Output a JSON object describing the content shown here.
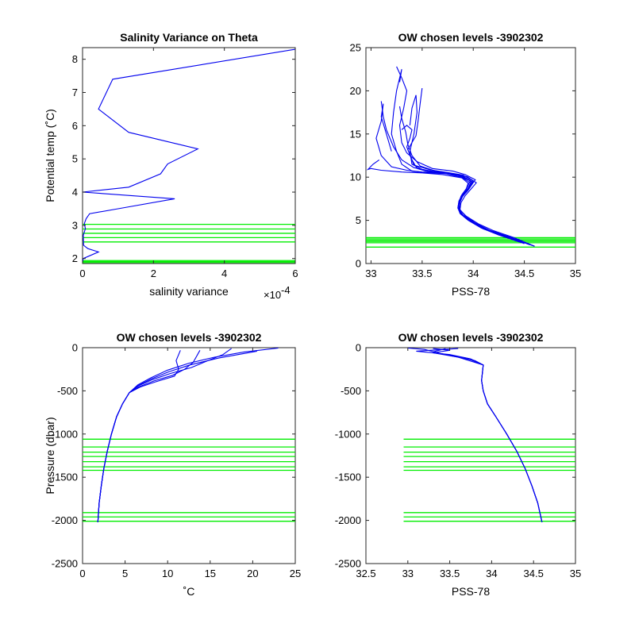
{
  "colors": {
    "profile": "#0000ee",
    "levels": "#00ee00",
    "axis": "#262626"
  },
  "chart_data": [
    {
      "type": "line",
      "title": "Salinity Variance on Theta",
      "xlabel": "salinity variance",
      "ylabel": "Potential temp (˚C)",
      "x_multiplier": "×10",
      "x_exponent": "-4",
      "xlim": [
        0,
        6
      ],
      "ylim": [
        1.85,
        8.35
      ],
      "xticks": [
        0,
        2,
        4,
        6
      ],
      "yticks": [
        2,
        3,
        4,
        5,
        6,
        7,
        8
      ],
      "series": [
        {
          "x": [
            6.0,
            0.85,
            0.45,
            1.3,
            3.25,
            2.4,
            2.2,
            1.3,
            0.0,
            2.6,
            1.0,
            0.2,
            0.1,
            0.05,
            0.08,
            0.02,
            0.03,
            0.15,
            0.45,
            0.02,
            0.0
          ],
          "y": [
            8.3,
            7.4,
            6.5,
            5.8,
            5.3,
            4.85,
            4.55,
            4.15,
            4.0,
            3.8,
            3.5,
            3.35,
            3.2,
            3.05,
            2.9,
            2.7,
            2.4,
            2.3,
            2.2,
            2.0,
            1.9
          ]
        }
      ],
      "hlines": {
        "y": [
          1.88,
          1.91,
          1.94,
          2.5,
          2.63,
          2.76,
          2.89,
          3.03
        ],
        "x_from": 0,
        "x_to": 6
      }
    },
    {
      "type": "line",
      "title": "OW chosen levels -3902302",
      "xlabel": "PSS-78",
      "ylabel": "",
      "xlim": [
        32.95,
        35
      ],
      "ylim": [
        0,
        25
      ],
      "xticks": [
        33,
        33.5,
        34,
        34.5,
        35
      ],
      "yticks": [
        0,
        5,
        10,
        15,
        20,
        25
      ],
      "series": [
        {
          "x": [
            34.6,
            34.4,
            34.2,
            34.05,
            33.93,
            33.87,
            33.86,
            33.88,
            33.93,
            33.95,
            33.88,
            33.7,
            33.5,
            33.35,
            33.2,
            33.1,
            33.05,
            33.1,
            33.12,
            33.1,
            33.15,
            33.2
          ],
          "y": [
            2.0,
            3.0,
            3.8,
            4.6,
            5.5,
            6.2,
            7.0,
            7.8,
            8.6,
            9.3,
            10.0,
            10.5,
            10.6,
            10.8,
            11.2,
            12.5,
            14.5,
            16.5,
            18.5,
            17.0,
            15.0,
            13.0
          ]
        },
        {
          "x": [
            34.55,
            34.35,
            34.15,
            34.0,
            33.9,
            33.86,
            33.87,
            33.9,
            33.96,
            34.0,
            33.9,
            33.75,
            33.55,
            33.4,
            33.3,
            33.25,
            33.2,
            33.22,
            33.25,
            33.3,
            33.28
          ],
          "y": [
            2.2,
            3.1,
            3.9,
            4.8,
            5.6,
            6.3,
            7.1,
            7.9,
            8.7,
            9.4,
            10.1,
            10.4,
            10.5,
            10.7,
            11.5,
            13.0,
            15.0,
            17.5,
            20.0,
            22.5,
            21.0
          ]
        },
        {
          "x": [
            34.5,
            34.3,
            34.1,
            33.97,
            33.88,
            33.85,
            33.86,
            33.89,
            33.94,
            33.97,
            33.85,
            33.65,
            33.5,
            33.4,
            33.38,
            33.42,
            33.45,
            33.44,
            33.4,
            33.38
          ],
          "y": [
            2.4,
            3.2,
            4.0,
            4.9,
            5.7,
            6.4,
            7.2,
            8.0,
            8.8,
            9.6,
            10.2,
            10.6,
            10.9,
            11.5,
            13.0,
            15.0,
            17.5,
            19.5,
            18.0,
            16.0
          ]
        },
        {
          "x": [
            34.45,
            34.25,
            34.08,
            33.95,
            33.87,
            33.85,
            33.87,
            33.91,
            33.97,
            34.02,
            33.92,
            33.8,
            33.6,
            33.45,
            33.35,
            33.3,
            33.28,
            33.32,
            33.35,
            33.3,
            33.25
          ],
          "y": [
            2.5,
            3.3,
            4.1,
            5.0,
            5.8,
            6.5,
            7.3,
            8.1,
            8.9,
            9.7,
            10.3,
            10.7,
            11.0,
            11.8,
            12.8,
            14.0,
            16.0,
            18.0,
            20.0,
            21.5,
            22.8
          ]
        },
        {
          "x": [
            34.6,
            34.38,
            34.18,
            34.03,
            33.91,
            33.86,
            33.86,
            33.89,
            33.95,
            33.99,
            33.9,
            33.7,
            33.5,
            33.3,
            33.1,
            33.0,
            32.97,
            33.02,
            33.08
          ],
          "y": [
            2.0,
            2.9,
            3.7,
            4.5,
            5.4,
            6.1,
            6.9,
            7.7,
            8.5,
            9.2,
            9.9,
            10.3,
            10.5,
            10.6,
            10.8,
            11.0,
            10.9,
            11.5,
            12.0
          ]
        },
        {
          "x": [
            34.5,
            34.3,
            34.12,
            33.98,
            33.89,
            33.86,
            33.87,
            33.9,
            33.95,
            33.98,
            33.88,
            33.72,
            33.55,
            33.45,
            33.4,
            33.35,
            33.38,
            33.4,
            33.35,
            33.3
          ],
          "y": [
            2.3,
            3.15,
            3.95,
            4.85,
            5.65,
            6.35,
            7.15,
            7.95,
            8.75,
            9.5,
            10.15,
            10.45,
            10.65,
            11.0,
            12.0,
            13.5,
            14.5,
            15.5,
            16.0,
            15.5
          ]
        },
        {
          "x": [
            34.58,
            34.36,
            34.16,
            34.02,
            33.92,
            33.87,
            33.88,
            33.92,
            33.98,
            34.03,
            33.94,
            33.78,
            33.62,
            33.48,
            33.4,
            33.36,
            33.34,
            33.3,
            33.28
          ],
          "y": [
            2.1,
            3.05,
            3.85,
            4.7,
            5.55,
            6.25,
            7.05,
            7.85,
            8.65,
            9.35,
            10.05,
            10.45,
            10.75,
            11.3,
            12.5,
            13.8,
            15.2,
            16.8,
            18.2
          ]
        },
        {
          "x": [
            34.48,
            34.28,
            34.1,
            33.96,
            33.88,
            33.85,
            33.86,
            33.9,
            33.96,
            34.0,
            33.9,
            33.74,
            33.58,
            33.42,
            33.36,
            33.44,
            33.46,
            33.48,
            33.5
          ],
          "y": [
            2.45,
            3.25,
            4.05,
            4.95,
            5.75,
            6.45,
            7.25,
            8.05,
            8.85,
            9.55,
            10.25,
            10.55,
            10.85,
            11.4,
            13.2,
            14.8,
            16.5,
            18.5,
            20.3
          ]
        },
        {
          "x": [
            34.56,
            34.34,
            34.14,
            33.99,
            33.9,
            33.86,
            33.87,
            33.9,
            33.95,
            33.99,
            33.9,
            33.75,
            33.58,
            33.42,
            33.3,
            33.22,
            33.15,
            33.12,
            33.1
          ],
          "y": [
            2.15,
            3.1,
            3.9,
            4.75,
            5.6,
            6.3,
            7.1,
            7.9,
            8.7,
            9.4,
            10.1,
            10.5,
            10.7,
            11.1,
            12.0,
            13.5,
            15.5,
            17.0,
            18.8
          ]
        }
      ],
      "hlines": {
        "y": [
          1.9,
          2.4,
          2.55,
          2.7,
          2.85,
          3.0
        ],
        "x_from": 32.95,
        "x_to": 35
      }
    },
    {
      "type": "line",
      "title": "OW chosen levels -3902302",
      "xlabel": "˚C",
      "ylabel": "Pressure (dbar)",
      "xlim": [
        0,
        25
      ],
      "ylim": [
        -2500,
        0
      ],
      "xticks": [
        0,
        5,
        10,
        15,
        20,
        25
      ],
      "yticks": [
        0,
        -500,
        -1000,
        -1500,
        -2000,
        -2500
      ],
      "series": [
        {
          "x": [
            1.8,
            1.95,
            2.2,
            2.5,
            2.9,
            3.4,
            4.0,
            4.7,
            5.5,
            6.5,
            8.0,
            10.0,
            12.5,
            15.5,
            19.0,
            23.0
          ],
          "y": [
            -2020,
            -1800,
            -1600,
            -1400,
            -1200,
            -1000,
            -800,
            -650,
            -520,
            -430,
            -350,
            -260,
            -180,
            -110,
            -50,
            -5
          ]
        },
        {
          "x": [
            1.8,
            1.95,
            2.2,
            2.5,
            2.9,
            3.4,
            4.0,
            4.7,
            5.5,
            6.6,
            8.2,
            10.3,
            12.8,
            14.5,
            16.5,
            17.5
          ],
          "y": [
            -2020,
            -1800,
            -1600,
            -1400,
            -1200,
            -1000,
            -800,
            -650,
            -520,
            -440,
            -370,
            -300,
            -230,
            -160,
            -80,
            -10
          ]
        },
        {
          "x": [
            1.8,
            1.95,
            2.2,
            2.5,
            2.9,
            3.4,
            4.0,
            4.7,
            5.5,
            6.7,
            8.4,
            10.6,
            12.0,
            13.0,
            13.8
          ],
          "y": [
            -2020,
            -1800,
            -1600,
            -1400,
            -1200,
            -1000,
            -800,
            -650,
            -520,
            -450,
            -385,
            -320,
            -250,
            -170,
            -30
          ]
        },
        {
          "x": [
            1.8,
            1.95,
            2.2,
            2.5,
            2.9,
            3.4,
            4.0,
            4.7,
            5.5,
            6.8,
            8.6,
            10.8,
            11.3,
            11.0,
            11.5
          ],
          "y": [
            -2020,
            -1800,
            -1600,
            -1400,
            -1200,
            -1000,
            -800,
            -650,
            -520,
            -455,
            -395,
            -330,
            -250,
            -150,
            -30
          ]
        },
        {
          "x": [
            1.8,
            1.95,
            2.2,
            2.5,
            2.9,
            3.4,
            4.0,
            4.7,
            5.5,
            6.6,
            8.1,
            10.1,
            12.6,
            16.0,
            20.5
          ],
          "y": [
            -2020,
            -1800,
            -1600,
            -1400,
            -1200,
            -1000,
            -800,
            -650,
            -520,
            -435,
            -360,
            -280,
            -200,
            -120,
            -40
          ]
        }
      ],
      "hlines": {
        "y": [
          -1060,
          -1150,
          -1210,
          -1260,
          -1320,
          -1380,
          -1420,
          -1910,
          -1960,
          -2010
        ],
        "x_from": 0,
        "x_to": 25
      }
    },
    {
      "type": "line",
      "title": "OW chosen levels -3902302",
      "xlabel": "PSS-78",
      "ylabel": "",
      "xlim": [
        32.5,
        35
      ],
      "ylim": [
        -2500,
        0
      ],
      "xticks": [
        32.5,
        33,
        33.5,
        34,
        34.5,
        35
      ],
      "yticks": [
        0,
        -500,
        -1000,
        -1500,
        -2000,
        -2500
      ],
      "series": [
        {
          "x": [
            34.6,
            34.55,
            34.48,
            34.4,
            34.3,
            34.18,
            34.05,
            33.95,
            33.9,
            33.88,
            33.9,
            33.7,
            33.4,
            33.2,
            33.0
          ],
          "y": [
            -2020,
            -1800,
            -1600,
            -1400,
            -1200,
            -1000,
            -800,
            -650,
            -500,
            -380,
            -200,
            -120,
            -70,
            -20,
            -5
          ]
        },
        {
          "x": [
            34.6,
            34.55,
            34.48,
            34.4,
            34.3,
            34.18,
            34.05,
            33.95,
            33.9,
            33.88,
            33.9,
            33.6,
            33.3,
            33.5,
            33.3
          ],
          "y": [
            -2020,
            -1800,
            -1600,
            -1400,
            -1200,
            -1000,
            -800,
            -650,
            -500,
            -380,
            -200,
            -110,
            -60,
            -30,
            -10
          ]
        },
        {
          "x": [
            34.6,
            34.55,
            34.48,
            34.4,
            34.3,
            34.18,
            34.05,
            33.95,
            33.9,
            33.88,
            33.9,
            33.75,
            33.5,
            33.1,
            33.6
          ],
          "y": [
            -2020,
            -1800,
            -1600,
            -1400,
            -1200,
            -1000,
            -800,
            -650,
            -500,
            -380,
            -200,
            -130,
            -80,
            -40,
            -10
          ]
        },
        {
          "x": [
            34.6,
            34.55,
            34.48,
            34.4,
            34.3,
            34.18,
            34.05,
            33.95,
            33.9,
            33.88,
            33.9,
            33.8,
            33.55,
            33.3,
            33.45
          ],
          "y": [
            -2020,
            -1800,
            -1600,
            -1400,
            -1200,
            -1000,
            -800,
            -650,
            -500,
            -380,
            -200,
            -150,
            -100,
            -50,
            -10
          ]
        }
      ],
      "hlines": {
        "y": [
          -1060,
          -1150,
          -1210,
          -1260,
          -1320,
          -1380,
          -1420,
          -1910,
          -1960,
          -2010
        ],
        "x_from": 32.95,
        "x_to": 35
      }
    }
  ]
}
